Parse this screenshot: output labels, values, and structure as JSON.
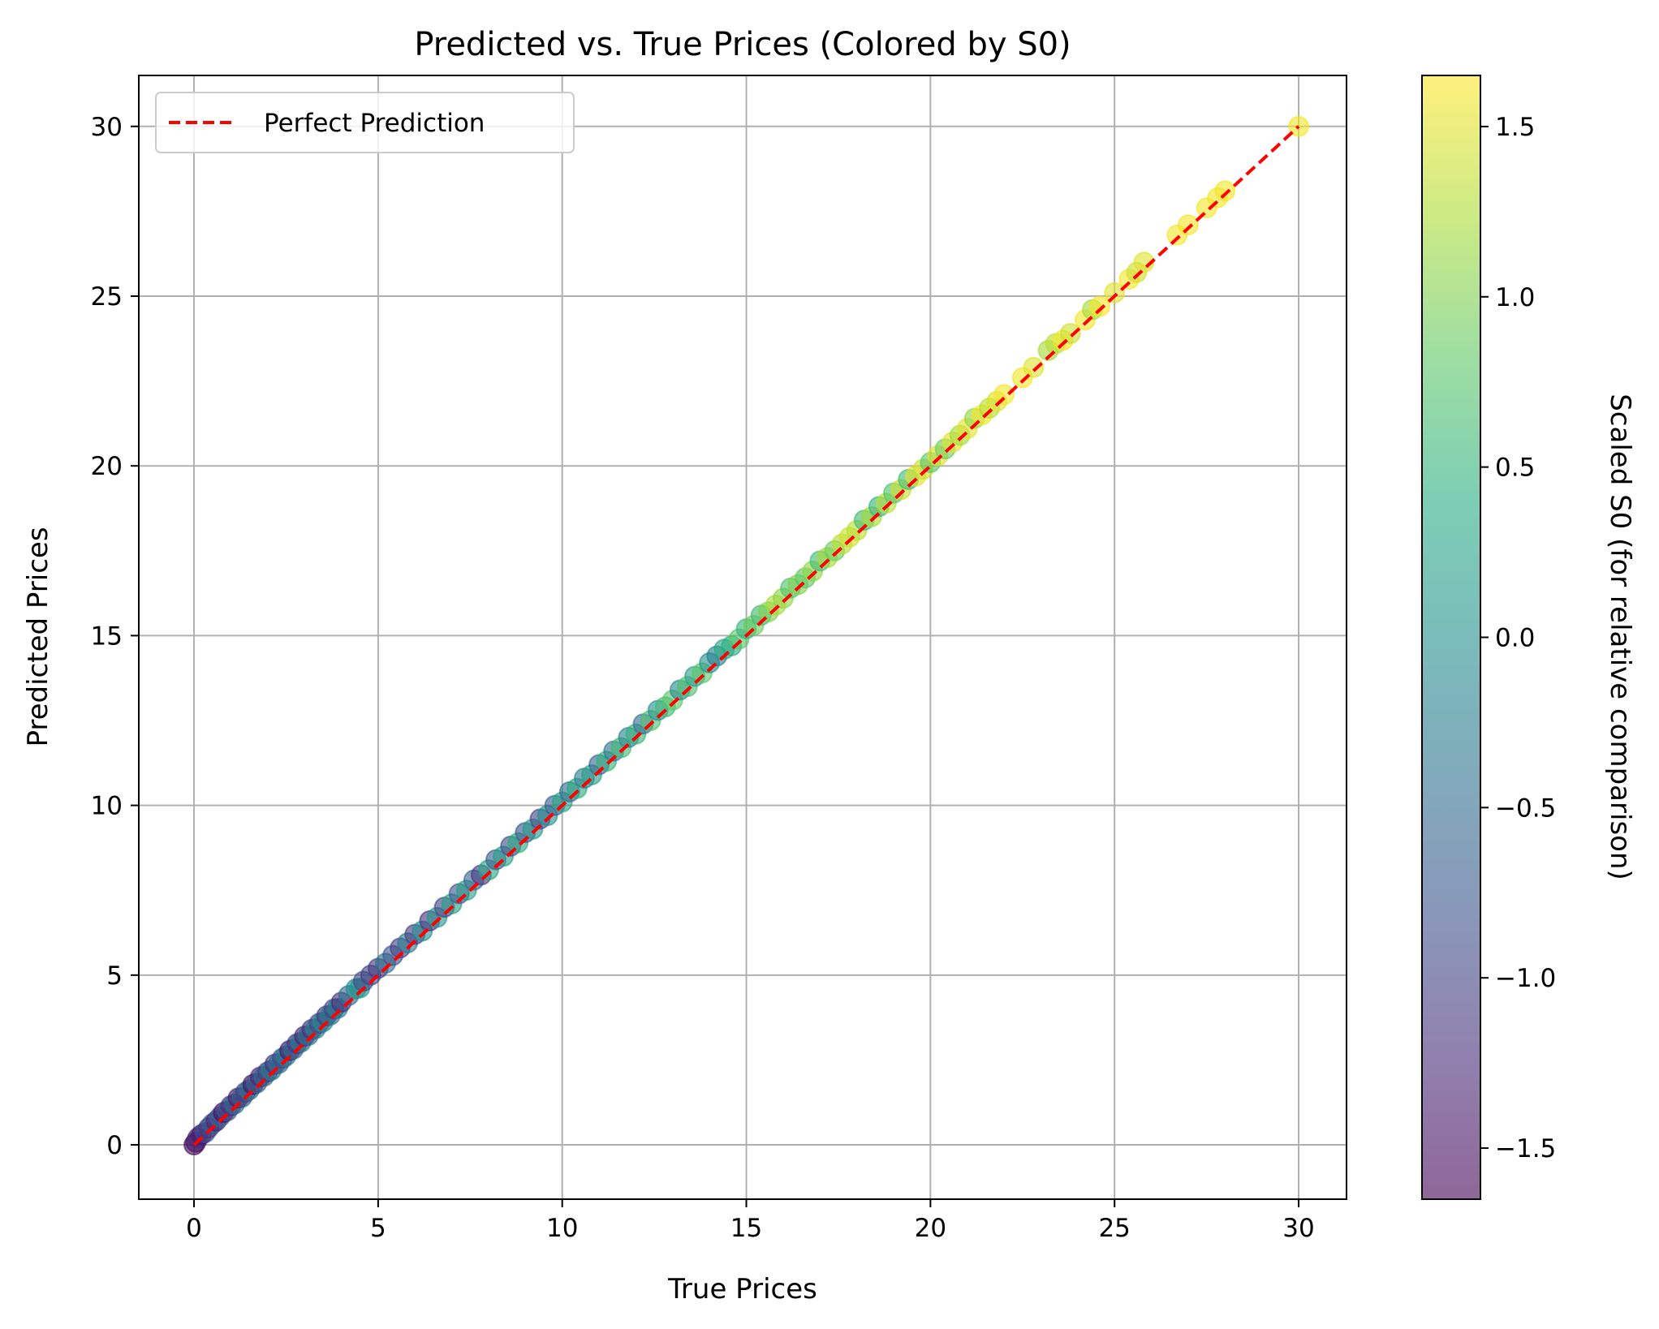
{
  "chart_data": {
    "type": "scatter",
    "title": "Predicted vs. True Prices (Colored by S0)",
    "xlabel": "True Prices",
    "ylabel": "Predicted Prices",
    "xlim": [
      -1.5,
      31.3
    ],
    "ylim": [
      -1.6,
      31.5
    ],
    "xticks": [
      0,
      5,
      10,
      15,
      20,
      25,
      30
    ],
    "xtick_labels": [
      "0",
      "5",
      "10",
      "15",
      "20",
      "25",
      "30"
    ],
    "yticks": [
      0,
      5,
      10,
      15,
      20,
      25,
      30
    ],
    "ytick_labels": [
      "0",
      "5",
      "10",
      "15",
      "20",
      "25",
      "30"
    ],
    "grid": true,
    "legend": {
      "placement": "top-left",
      "entries": [
        "Perfect Prediction"
      ]
    },
    "reference_line": {
      "name": "Perfect Prediction",
      "color": "#ff0000",
      "style": "dashed",
      "from": [
        0,
        0
      ],
      "to": [
        30,
        30
      ]
    },
    "colorbar": {
      "label": "Scaled S0 (for relative comparison)",
      "colormap": "viridis",
      "range": [
        -1.65,
        1.65
      ],
      "ticks": [
        -1.5,
        -1.0,
        -0.5,
        0.0,
        0.5,
        1.0,
        1.5
      ],
      "tick_labels": [
        "−1.5",
        "−1.0",
        "−0.5",
        "0.0",
        "0.5",
        "1.0",
        "1.5"
      ],
      "alpha": 0.6
    },
    "point_alpha": 0.6,
    "points": [
      {
        "x": 0.0,
        "y": 0.0,
        "c": -1.6
      },
      {
        "x": 0.05,
        "y": 0.08,
        "c": -1.5
      },
      {
        "x": 0.1,
        "y": 0.2,
        "c": -1.2
      },
      {
        "x": 0.2,
        "y": 0.3,
        "c": -1.4
      },
      {
        "x": 0.3,
        "y": 0.36,
        "c": -0.9
      },
      {
        "x": 0.4,
        "y": 0.5,
        "c": -1.1
      },
      {
        "x": 0.5,
        "y": 0.62,
        "c": -0.7
      },
      {
        "x": 0.6,
        "y": 0.7,
        "c": -1.3
      },
      {
        "x": 0.7,
        "y": 0.82,
        "c": -0.6
      },
      {
        "x": 0.8,
        "y": 0.95,
        "c": -1.5
      },
      {
        "x": 0.9,
        "y": 1.0,
        "c": -0.8
      },
      {
        "x": 1.0,
        "y": 1.15,
        "c": -1.2
      },
      {
        "x": 1.1,
        "y": 1.2,
        "c": -0.5
      },
      {
        "x": 1.2,
        "y": 1.38,
        "c": -1.4
      },
      {
        "x": 1.3,
        "y": 1.4,
        "c": -0.7
      },
      {
        "x": 1.4,
        "y": 1.55,
        "c": -1.0
      },
      {
        "x": 1.5,
        "y": 1.62,
        "c": -0.4
      },
      {
        "x": 1.6,
        "y": 1.78,
        "c": -1.5
      },
      {
        "x": 1.7,
        "y": 1.82,
        "c": -0.6
      },
      {
        "x": 1.8,
        "y": 2.0,
        "c": -1.3
      },
      {
        "x": 1.9,
        "y": 2.02,
        "c": -0.5
      },
      {
        "x": 2.0,
        "y": 2.15,
        "c": -1.0
      },
      {
        "x": 2.1,
        "y": 2.2,
        "c": -0.3
      },
      {
        "x": 2.2,
        "y": 2.38,
        "c": -1.2
      },
      {
        "x": 2.3,
        "y": 2.4,
        "c": -0.4
      },
      {
        "x": 2.4,
        "y": 2.55,
        "c": -0.9
      },
      {
        "x": 2.5,
        "y": 2.62,
        "c": -0.2
      },
      {
        "x": 2.6,
        "y": 2.78,
        "c": -1.4
      },
      {
        "x": 2.7,
        "y": 2.82,
        "c": -0.5
      },
      {
        "x": 2.8,
        "y": 2.98,
        "c": -1.1
      },
      {
        "x": 2.9,
        "y": 3.02,
        "c": -0.3
      },
      {
        "x": 3.0,
        "y": 3.2,
        "c": -1.3
      },
      {
        "x": 3.1,
        "y": 3.22,
        "c": -0.4
      },
      {
        "x": 3.2,
        "y": 3.4,
        "c": -1.2
      },
      {
        "x": 3.3,
        "y": 3.42,
        "c": -0.2
      },
      {
        "x": 3.4,
        "y": 3.58,
        "c": -0.9
      },
      {
        "x": 3.5,
        "y": 3.62,
        "c": -0.1
      },
      {
        "x": 3.6,
        "y": 3.8,
        "c": -1.1
      },
      {
        "x": 3.7,
        "y": 3.82,
        "c": -0.3
      },
      {
        "x": 3.8,
        "y": 4.0,
        "c": -1.0
      },
      {
        "x": 3.9,
        "y": 4.02,
        "c": -0.2
      },
      {
        "x": 4.0,
        "y": 4.2,
        "c": -1.2
      },
      {
        "x": 4.2,
        "y": 4.4,
        "c": -0.5
      },
      {
        "x": 4.4,
        "y": 4.6,
        "c": -0.1
      },
      {
        "x": 4.5,
        "y": 4.62,
        "c": 0.1
      },
      {
        "x": 4.6,
        "y": 4.82,
        "c": -0.9
      },
      {
        "x": 4.8,
        "y": 5.0,
        "c": -1.0
      },
      {
        "x": 5.0,
        "y": 5.2,
        "c": -1.1
      },
      {
        "x": 5.2,
        "y": 5.35,
        "c": -0.4
      },
      {
        "x": 5.4,
        "y": 5.58,
        "c": -0.8
      },
      {
        "x": 5.6,
        "y": 5.8,
        "c": -1.0
      },
      {
        "x": 5.8,
        "y": 5.95,
        "c": -0.3
      },
      {
        "x": 6.0,
        "y": 6.2,
        "c": -1.1
      },
      {
        "x": 6.2,
        "y": 6.3,
        "c": 0.0
      },
      {
        "x": 6.4,
        "y": 6.6,
        "c": -1.2
      },
      {
        "x": 6.6,
        "y": 6.7,
        "c": 0.1
      },
      {
        "x": 6.8,
        "y": 7.0,
        "c": -1.0
      },
      {
        "x": 7.0,
        "y": 7.1,
        "c": 0.2
      },
      {
        "x": 7.2,
        "y": 7.4,
        "c": -0.8
      },
      {
        "x": 7.4,
        "y": 7.5,
        "c": 0.2
      },
      {
        "x": 7.6,
        "y": 7.8,
        "c": -0.6
      },
      {
        "x": 7.8,
        "y": 7.95,
        "c": -1.1
      },
      {
        "x": 8.0,
        "y": 8.1,
        "c": 0.3
      },
      {
        "x": 8.2,
        "y": 8.4,
        "c": -0.7
      },
      {
        "x": 8.4,
        "y": 8.5,
        "c": 0.2
      },
      {
        "x": 8.6,
        "y": 8.8,
        "c": -0.9
      },
      {
        "x": 8.8,
        "y": 8.9,
        "c": 0.4
      },
      {
        "x": 9.0,
        "y": 9.2,
        "c": -0.8
      },
      {
        "x": 9.2,
        "y": 9.3,
        "c": 0.1
      },
      {
        "x": 9.4,
        "y": 9.6,
        "c": -1.0
      },
      {
        "x": 9.6,
        "y": 9.7,
        "c": 0.0
      },
      {
        "x": 9.8,
        "y": 10.0,
        "c": -0.7
      },
      {
        "x": 10.0,
        "y": 10.1,
        "c": 0.3
      },
      {
        "x": 10.2,
        "y": 10.4,
        "c": -0.5
      },
      {
        "x": 10.4,
        "y": 10.5,
        "c": 0.4
      },
      {
        "x": 10.6,
        "y": 10.8,
        "c": -0.3
      },
      {
        "x": 10.8,
        "y": 10.9,
        "c": 0.2
      },
      {
        "x": 11.0,
        "y": 11.2,
        "c": -0.6
      },
      {
        "x": 11.2,
        "y": 11.3,
        "c": 0.5
      },
      {
        "x": 11.4,
        "y": 11.6,
        "c": -0.4
      },
      {
        "x": 11.6,
        "y": 11.7,
        "c": 0.6
      },
      {
        "x": 11.8,
        "y": 12.0,
        "c": -0.2
      },
      {
        "x": 12.0,
        "y": 12.1,
        "c": 0.5
      },
      {
        "x": 12.2,
        "y": 12.4,
        "c": -0.5
      },
      {
        "x": 12.4,
        "y": 12.5,
        "c": 0.7
      },
      {
        "x": 12.6,
        "y": 12.8,
        "c": 0.0
      },
      {
        "x": 12.8,
        "y": 12.9,
        "c": 0.6
      },
      {
        "x": 13.0,
        "y": 13.1,
        "c": 0.8
      },
      {
        "x": 13.2,
        "y": 13.4,
        "c": -0.1
      },
      {
        "x": 13.4,
        "y": 13.5,
        "c": 0.7
      },
      {
        "x": 13.6,
        "y": 13.8,
        "c": 0.2
      },
      {
        "x": 13.8,
        "y": 13.9,
        "c": 0.8
      },
      {
        "x": 14.0,
        "y": 14.2,
        "c": 0.0
      },
      {
        "x": 14.2,
        "y": 14.4,
        "c": -0.2
      },
      {
        "x": 14.4,
        "y": 14.6,
        "c": 0.3
      },
      {
        "x": 14.6,
        "y": 14.7,
        "c": 0.4
      },
      {
        "x": 14.8,
        "y": 14.9,
        "c": 0.8
      },
      {
        "x": 15.0,
        "y": 15.2,
        "c": 0.5
      },
      {
        "x": 15.2,
        "y": 15.3,
        "c": 0.9
      },
      {
        "x": 15.4,
        "y": 15.6,
        "c": 0.6
      },
      {
        "x": 15.6,
        "y": 15.7,
        "c": 1.0
      },
      {
        "x": 15.8,
        "y": 15.9,
        "c": 1.2
      },
      {
        "x": 16.0,
        "y": 16.1,
        "c": 1.1
      },
      {
        "x": 16.2,
        "y": 16.4,
        "c": 0.7
      },
      {
        "x": 16.4,
        "y": 16.5,
        "c": 1.0
      },
      {
        "x": 16.6,
        "y": 16.7,
        "c": 0.8
      },
      {
        "x": 16.8,
        "y": 16.9,
        "c": 1.1
      },
      {
        "x": 17.0,
        "y": 17.2,
        "c": 0.6
      },
      {
        "x": 17.2,
        "y": 17.3,
        "c": 1.2
      },
      {
        "x": 17.4,
        "y": 17.5,
        "c": 0.9
      },
      {
        "x": 17.6,
        "y": 17.7,
        "c": 1.3
      },
      {
        "x": 17.8,
        "y": 17.9,
        "c": 1.4
      },
      {
        "x": 18.0,
        "y": 18.1,
        "c": 1.3
      },
      {
        "x": 18.2,
        "y": 18.4,
        "c": 0.6
      },
      {
        "x": 18.4,
        "y": 18.5,
        "c": 1.2
      },
      {
        "x": 18.6,
        "y": 18.8,
        "c": 0.5
      },
      {
        "x": 18.8,
        "y": 18.9,
        "c": 1.3
      },
      {
        "x": 19.0,
        "y": 19.2,
        "c": 0.7
      },
      {
        "x": 19.2,
        "y": 19.3,
        "c": 1.4
      },
      {
        "x": 19.4,
        "y": 19.6,
        "c": 0.6
      },
      {
        "x": 19.6,
        "y": 19.7,
        "c": 1.5
      },
      {
        "x": 19.8,
        "y": 19.9,
        "c": 1.4
      },
      {
        "x": 20.0,
        "y": 20.1,
        "c": 0.8
      },
      {
        "x": 20.2,
        "y": 20.3,
        "c": 1.5
      },
      {
        "x": 20.4,
        "y": 20.5,
        "c": 0.9
      },
      {
        "x": 20.6,
        "y": 20.7,
        "c": 1.5
      },
      {
        "x": 20.8,
        "y": 20.9,
        "c": 1.2
      },
      {
        "x": 21.0,
        "y": 21.1,
        "c": 1.5
      },
      {
        "x": 21.2,
        "y": 21.4,
        "c": 1.1
      },
      {
        "x": 21.4,
        "y": 21.5,
        "c": 1.6
      },
      {
        "x": 21.6,
        "y": 21.7,
        "c": 1.3
      },
      {
        "x": 21.8,
        "y": 21.9,
        "c": 1.5
      },
      {
        "x": 22.0,
        "y": 22.1,
        "c": 1.6
      },
      {
        "x": 22.5,
        "y": 22.6,
        "c": 1.6
      },
      {
        "x": 22.8,
        "y": 22.9,
        "c": 1.5
      },
      {
        "x": 23.2,
        "y": 23.4,
        "c": 1.2
      },
      {
        "x": 23.4,
        "y": 23.6,
        "c": 1.3
      },
      {
        "x": 23.6,
        "y": 23.7,
        "c": 1.6
      },
      {
        "x": 23.8,
        "y": 23.9,
        "c": 1.4
      },
      {
        "x": 24.2,
        "y": 24.3,
        "c": 1.6
      },
      {
        "x": 24.4,
        "y": 24.6,
        "c": 1.2
      },
      {
        "x": 24.6,
        "y": 24.7,
        "c": 1.6
      },
      {
        "x": 25.0,
        "y": 25.1,
        "c": 1.5
      },
      {
        "x": 25.4,
        "y": 25.5,
        "c": 1.6
      },
      {
        "x": 25.6,
        "y": 25.7,
        "c": 1.4
      },
      {
        "x": 25.8,
        "y": 26.0,
        "c": 1.5
      },
      {
        "x": 26.7,
        "y": 26.8,
        "c": 1.6
      },
      {
        "x": 27.0,
        "y": 27.1,
        "c": 1.6
      },
      {
        "x": 27.5,
        "y": 27.6,
        "c": 1.6
      },
      {
        "x": 27.8,
        "y": 27.9,
        "c": 1.6
      },
      {
        "x": 28.0,
        "y": 28.1,
        "c": 1.6
      },
      {
        "x": 30.0,
        "y": 30.0,
        "c": 1.6
      }
    ]
  }
}
